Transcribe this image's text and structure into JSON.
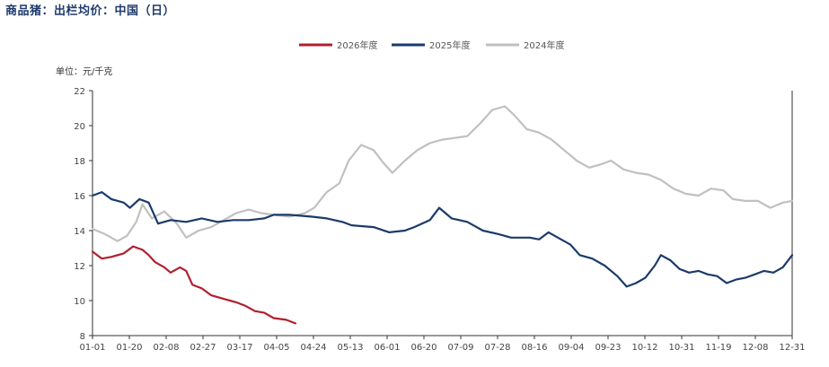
{
  "chart_data": {
    "type": "line",
    "title": "商品猪：出栏均价：中国（日）",
    "unit_label": "单位：元/千克",
    "ylim": [
      8,
      22
    ],
    "yticks": [
      8,
      10,
      12,
      14,
      16,
      18,
      20,
      22
    ],
    "categories": [
      "01-01",
      "01-20",
      "02-08",
      "02-27",
      "03-17",
      "04-05",
      "04-24",
      "05-13",
      "06-01",
      "06-20",
      "07-09",
      "07-28",
      "08-16",
      "09-04",
      "09-23",
      "10-12",
      "10-31",
      "11-19",
      "12-08",
      "12-31"
    ],
    "legend_position": "top-center",
    "grid": false,
    "series": [
      {
        "name": "2026年度",
        "color": "#b01f2e",
        "points": [
          [
            0,
            12.8
          ],
          [
            0.3,
            12.4
          ],
          [
            0.6,
            12.5
          ],
          [
            1,
            12.7
          ],
          [
            1.3,
            13.1
          ],
          [
            1.6,
            12.9
          ],
          [
            1.8,
            12.6
          ],
          [
            2,
            12.2
          ],
          [
            2.3,
            11.9
          ],
          [
            2.5,
            11.6
          ],
          [
            2.8,
            11.9
          ],
          [
            3,
            11.7
          ],
          [
            3.2,
            10.9
          ],
          [
            3.5,
            10.7
          ],
          [
            3.8,
            10.3
          ],
          [
            4.2,
            10.1
          ],
          [
            4.6,
            9.9
          ],
          [
            4.9,
            9.7
          ],
          [
            5.2,
            9.4
          ],
          [
            5.5,
            9.3
          ],
          [
            5.8,
            9.0
          ],
          [
            6.2,
            8.9
          ],
          [
            6.5,
            8.7
          ]
        ]
      },
      {
        "name": "2025年度",
        "color": "#1b3a6b",
        "points": [
          [
            0,
            16.0
          ],
          [
            0.3,
            16.2
          ],
          [
            0.6,
            15.8
          ],
          [
            1,
            15.6
          ],
          [
            1.2,
            15.3
          ],
          [
            1.5,
            15.8
          ],
          [
            1.8,
            15.6
          ],
          [
            2.1,
            14.4
          ],
          [
            2.5,
            14.6
          ],
          [
            3,
            14.5
          ],
          [
            3.5,
            14.7
          ],
          [
            4,
            14.5
          ],
          [
            4.5,
            14.6
          ],
          [
            5,
            14.6
          ],
          [
            5.5,
            14.7
          ],
          [
            5.8,
            14.9
          ],
          [
            6.3,
            14.9
          ],
          [
            7,
            14.8
          ],
          [
            7.5,
            14.7
          ],
          [
            8,
            14.5
          ],
          [
            8.3,
            14.3
          ],
          [
            9,
            14.2
          ],
          [
            9.5,
            13.9
          ],
          [
            10,
            14.0
          ],
          [
            10.3,
            14.2
          ],
          [
            10.8,
            14.6
          ],
          [
            11.1,
            15.3
          ],
          [
            11.5,
            14.7
          ],
          [
            12,
            14.5
          ],
          [
            12.5,
            14.0
          ],
          [
            13,
            13.8
          ],
          [
            13.4,
            13.6
          ],
          [
            14,
            13.6
          ],
          [
            14.3,
            13.5
          ],
          [
            14.6,
            13.9
          ],
          [
            15,
            13.5
          ],
          [
            15.3,
            13.2
          ],
          [
            15.6,
            12.6
          ],
          [
            16,
            12.4
          ],
          [
            16.4,
            12.0
          ],
          [
            16.8,
            11.4
          ],
          [
            17.1,
            10.8
          ],
          [
            17.4,
            11.0
          ],
          [
            17.7,
            11.3
          ],
          [
            18.0,
            12.0
          ],
          [
            18.2,
            12.6
          ],
          [
            18.5,
            12.3
          ],
          [
            18.8,
            11.8
          ],
          [
            19.1,
            11.6
          ],
          [
            19.4,
            11.7
          ],
          [
            19.7,
            11.5
          ],
          [
            20.0,
            11.4
          ],
          [
            20.3,
            11.0
          ],
          [
            20.6,
            11.2
          ],
          [
            20.9,
            11.3
          ],
          [
            21.2,
            11.5
          ],
          [
            21.5,
            11.7
          ],
          [
            21.8,
            11.6
          ],
          [
            22.1,
            11.9
          ],
          [
            22.4,
            12.6
          ]
        ]
      },
      {
        "name": "2024年度",
        "color": "#c0c0c0",
        "points": [
          [
            0,
            14.1
          ],
          [
            0.4,
            13.8
          ],
          [
            0.8,
            13.4
          ],
          [
            1.1,
            13.7
          ],
          [
            1.4,
            14.5
          ],
          [
            1.6,
            15.5
          ],
          [
            1.9,
            14.7
          ],
          [
            2.3,
            15.1
          ],
          [
            2.7,
            14.4
          ],
          [
            3,
            13.6
          ],
          [
            3.4,
            14.0
          ],
          [
            3.8,
            14.2
          ],
          [
            4.2,
            14.6
          ],
          [
            4.6,
            15.0
          ],
          [
            5,
            15.2
          ],
          [
            5.4,
            15.0
          ],
          [
            5.8,
            14.9
          ],
          [
            6.3,
            14.8
          ],
          [
            6.8,
            15.0
          ],
          [
            7.1,
            15.3
          ],
          [
            7.5,
            16.2
          ],
          [
            7.9,
            16.7
          ],
          [
            8.2,
            18.0
          ],
          [
            8.6,
            18.9
          ],
          [
            9,
            18.6
          ],
          [
            9.3,
            17.9
          ],
          [
            9.6,
            17.3
          ],
          [
            10,
            18.0
          ],
          [
            10.4,
            18.6
          ],
          [
            10.8,
            19.0
          ],
          [
            11.2,
            19.2
          ],
          [
            11.6,
            19.3
          ],
          [
            12,
            19.4
          ],
          [
            12.4,
            20.1
          ],
          [
            12.8,
            20.9
          ],
          [
            13.2,
            21.1
          ],
          [
            13.5,
            20.6
          ],
          [
            13.9,
            19.8
          ],
          [
            14.3,
            19.6
          ],
          [
            14.7,
            19.2
          ],
          [
            15.1,
            18.6
          ],
          [
            15.5,
            18.0
          ],
          [
            15.9,
            17.6
          ],
          [
            16.3,
            17.8
          ],
          [
            16.6,
            18.0
          ],
          [
            17,
            17.5
          ],
          [
            17.4,
            17.3
          ],
          [
            17.8,
            17.2
          ],
          [
            18.2,
            16.9
          ],
          [
            18.6,
            16.4
          ],
          [
            19,
            16.1
          ],
          [
            19.4,
            16.0
          ],
          [
            19.8,
            16.4
          ],
          [
            20.2,
            16.3
          ],
          [
            20.5,
            15.8
          ],
          [
            20.9,
            15.7
          ],
          [
            21.3,
            15.7
          ],
          [
            21.7,
            15.3
          ],
          [
            22.1,
            15.6
          ],
          [
            22.4,
            15.7
          ]
        ]
      }
    ]
  }
}
